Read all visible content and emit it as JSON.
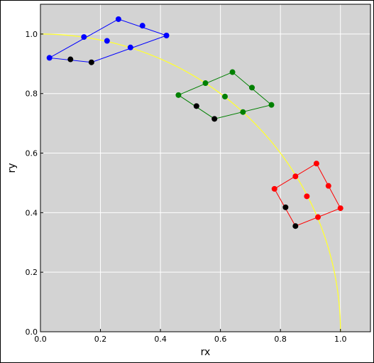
{
  "chart_data": {
    "type": "scatter",
    "title": "",
    "xlabel": "rx",
    "ylabel": "ry",
    "xlim": [
      0.0,
      1.1
    ],
    "ylim": [
      0.0,
      1.1
    ],
    "x_ticks": [
      0.0,
      0.2,
      0.4,
      0.6,
      0.8,
      1.0
    ],
    "y_ticks": [
      0.0,
      0.2,
      0.4,
      0.6,
      0.8,
      1.0
    ],
    "x_tick_labels": [
      "0.0",
      "0.2",
      "0.4",
      "0.6",
      "0.8",
      "1.0"
    ],
    "y_tick_labels": [
      "0.0",
      "0.2",
      "0.4",
      "0.6",
      "0.8",
      "1.0"
    ],
    "grid": true,
    "background_color": "#d3d3d3",
    "grid_color": "#ffffff",
    "curve": {
      "name": "unit-circle-arc",
      "color": "#ffff33",
      "description_equation": "rx^2 + ry^2 = 1"
    },
    "series": [
      {
        "color": "#0000ff",
        "outline": [
          [
            0.03,
            0.92
          ],
          [
            0.26,
            1.05
          ],
          [
            0.42,
            0.995
          ],
          [
            0.17,
            0.905
          ],
          [
            0.03,
            0.92
          ]
        ],
        "points": [
          [
            0.03,
            0.92
          ],
          [
            0.145,
            0.99
          ],
          [
            0.26,
            1.05
          ],
          [
            0.34,
            1.028
          ],
          [
            0.42,
            0.995
          ],
          [
            0.3,
            0.955
          ],
          [
            0.222,
            0.977
          ]
        ],
        "black_points": [
          [
            0.1,
            0.915
          ],
          [
            0.17,
            0.905
          ]
        ]
      },
      {
        "color": "#008000",
        "outline": [
          [
            0.46,
            0.795
          ],
          [
            0.64,
            0.872
          ],
          [
            0.77,
            0.762
          ],
          [
            0.58,
            0.715
          ],
          [
            0.46,
            0.795
          ]
        ],
        "points": [
          [
            0.46,
            0.795
          ],
          [
            0.55,
            0.835
          ],
          [
            0.64,
            0.872
          ],
          [
            0.705,
            0.82
          ],
          [
            0.77,
            0.762
          ],
          [
            0.675,
            0.738
          ],
          [
            0.615,
            0.79
          ]
        ],
        "black_points": [
          [
            0.52,
            0.758
          ],
          [
            0.58,
            0.715
          ]
        ]
      },
      {
        "color": "#ff0000",
        "outline": [
          [
            0.78,
            0.48
          ],
          [
            0.92,
            0.565
          ],
          [
            1.0,
            0.415
          ],
          [
            0.85,
            0.355
          ],
          [
            0.78,
            0.48
          ]
        ],
        "points": [
          [
            0.78,
            0.48
          ],
          [
            0.85,
            0.522
          ],
          [
            0.92,
            0.565
          ],
          [
            0.96,
            0.49
          ],
          [
            1.0,
            0.415
          ],
          [
            0.925,
            0.385
          ],
          [
            0.888,
            0.455
          ]
        ],
        "black_points": [
          [
            0.817,
            0.418
          ],
          [
            0.85,
            0.355
          ]
        ]
      }
    ]
  }
}
